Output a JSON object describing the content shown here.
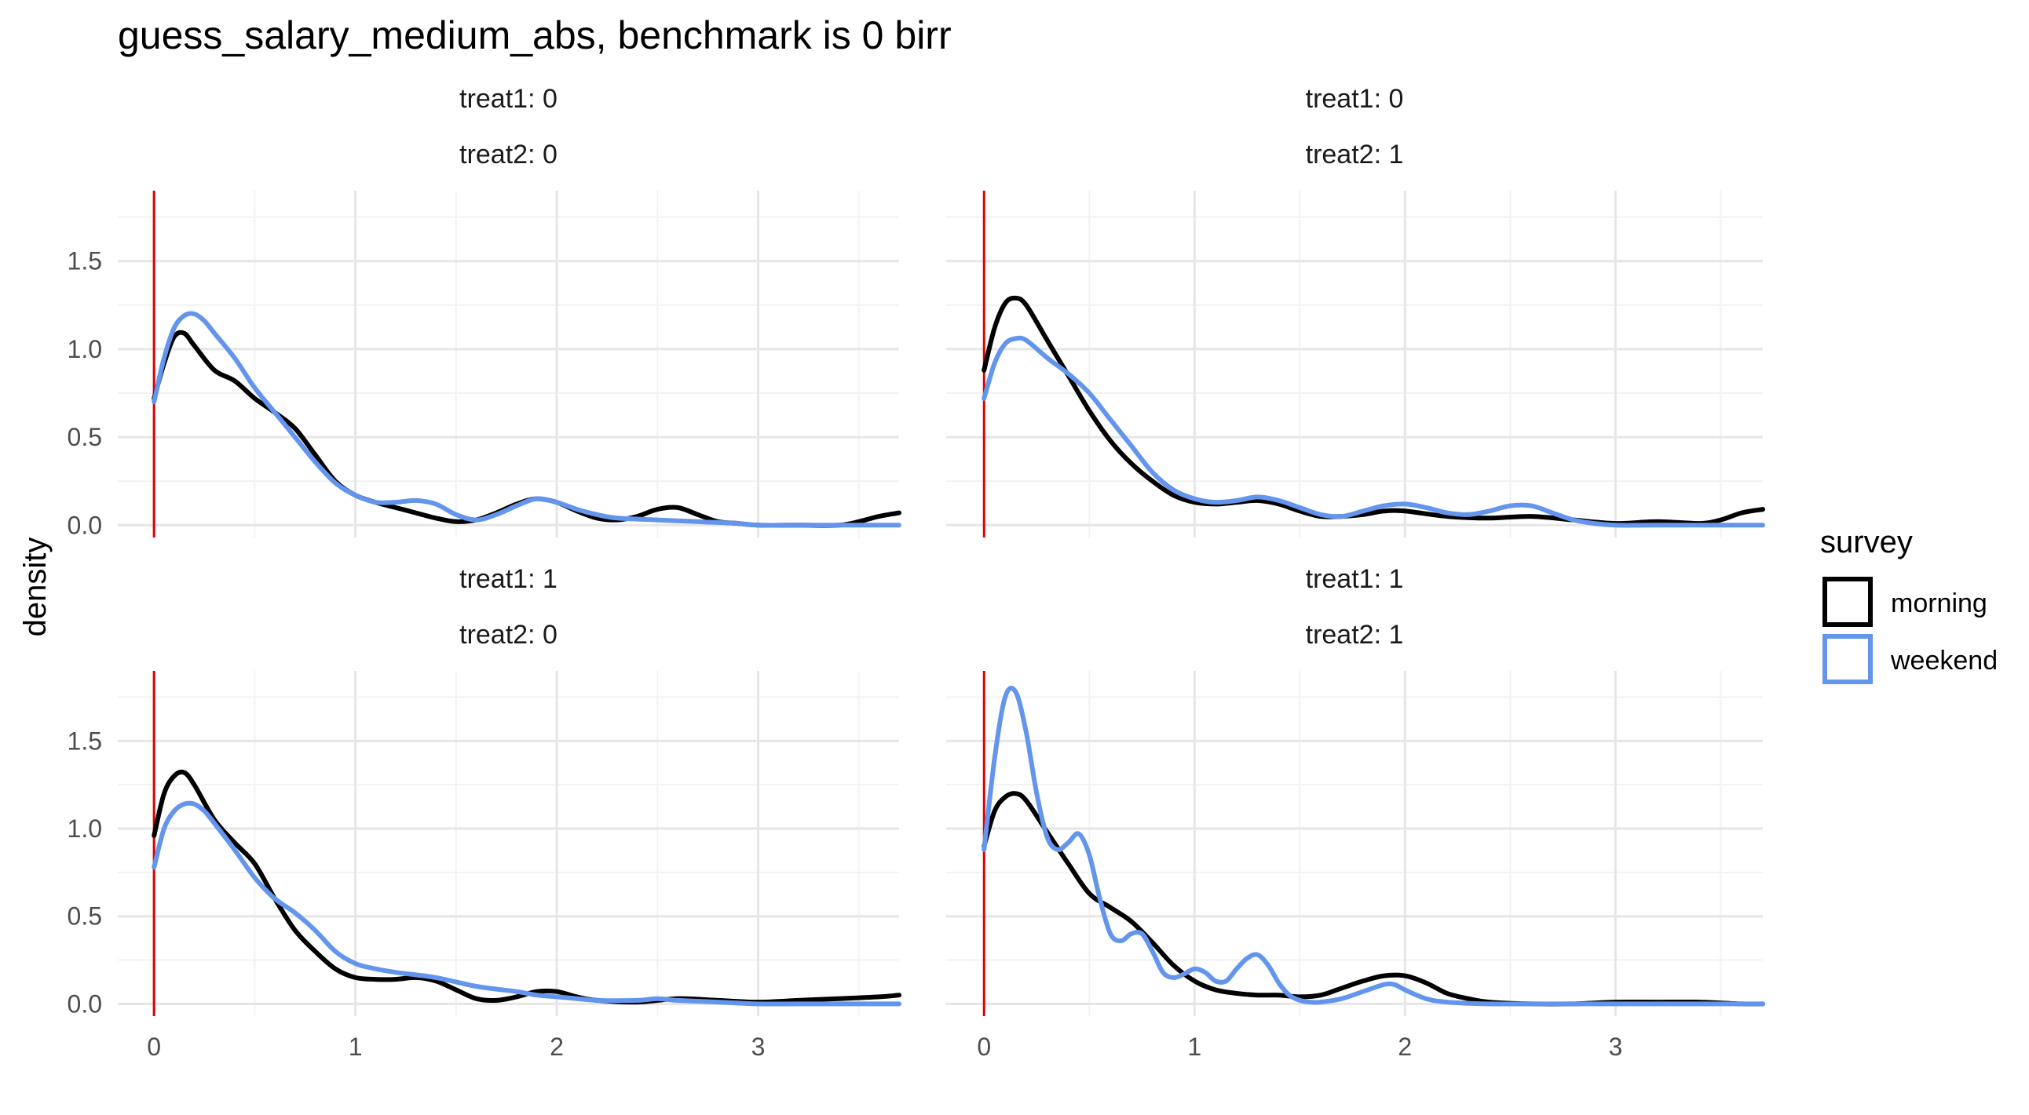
{
  "chart_data": {
    "type": "line",
    "title": "guess_salary_medium_abs, benchmark is 0 birr",
    "ylabel": "density",
    "xlabel": "",
    "x_ticks": [
      0,
      1,
      2,
      3
    ],
    "y_ticks": [
      0.0,
      0.5,
      1.0,
      1.5
    ],
    "y_tick_labels": [
      "0.0",
      "0.5",
      "1.0",
      "1.5"
    ],
    "xlim": [
      -0.18,
      3.7
    ],
    "ylim": [
      -0.07,
      1.9
    ],
    "benchmark_x": 0,
    "benchmark_color": "#e00000",
    "grid": true,
    "legend": {
      "title": "survey",
      "position": "right",
      "entries": [
        {
          "label": "morning",
          "color": "#000000"
        },
        {
          "label": "weekend",
          "color": "#6495ed"
        }
      ]
    },
    "panels": [
      {
        "strip1": "treat1: 0",
        "strip2": "treat2: 0",
        "series": [
          {
            "name": "morning",
            "color": "#000000",
            "x": [
              0,
              0.05,
              0.1,
              0.15,
              0.2,
              0.3,
              0.4,
              0.5,
              0.6,
              0.7,
              0.8,
              0.9,
              1.0,
              1.1,
              1.2,
              1.3,
              1.4,
              1.5,
              1.6,
              1.7,
              1.8,
              1.9,
              2.0,
              2.1,
              2.2,
              2.3,
              2.4,
              2.5,
              2.6,
              2.7,
              2.8,
              2.9,
              3.0,
              3.2,
              3.4,
              3.5,
              3.6,
              3.7
            ],
            "y": [
              0.72,
              0.92,
              1.07,
              1.09,
              1.02,
              0.88,
              0.82,
              0.72,
              0.64,
              0.55,
              0.4,
              0.25,
              0.17,
              0.13,
              0.1,
              0.07,
              0.04,
              0.02,
              0.03,
              0.07,
              0.12,
              0.15,
              0.13,
              0.08,
              0.04,
              0.03,
              0.05,
              0.09,
              0.1,
              0.06,
              0.02,
              0.01,
              0.0,
              0.0,
              0.0,
              0.02,
              0.05,
              0.07
            ]
          },
          {
            "name": "weekend",
            "color": "#6495ed",
            "x": [
              0,
              0.05,
              0.1,
              0.15,
              0.2,
              0.25,
              0.3,
              0.4,
              0.5,
              0.6,
              0.7,
              0.8,
              0.9,
              1.0,
              1.1,
              1.2,
              1.3,
              1.4,
              1.5,
              1.6,
              1.7,
              1.8,
              1.9,
              2.0,
              2.1,
              2.2,
              2.3,
              2.5,
              2.7,
              2.9,
              3.0,
              3.2,
              3.5,
              3.7
            ],
            "y": [
              0.7,
              0.95,
              1.12,
              1.19,
              1.2,
              1.16,
              1.09,
              0.95,
              0.78,
              0.64,
              0.5,
              0.36,
              0.24,
              0.17,
              0.13,
              0.13,
              0.14,
              0.12,
              0.06,
              0.03,
              0.06,
              0.11,
              0.15,
              0.13,
              0.09,
              0.06,
              0.04,
              0.03,
              0.02,
              0.01,
              0.0,
              0.0,
              0.0,
              0.0
            ]
          }
        ]
      },
      {
        "strip1": "treat1: 0",
        "strip2": "treat2: 1",
        "series": [
          {
            "name": "morning",
            "color": "#000000",
            "x": [
              0,
              0.05,
              0.1,
              0.15,
              0.2,
              0.3,
              0.4,
              0.5,
              0.6,
              0.7,
              0.8,
              0.9,
              1.0,
              1.1,
              1.2,
              1.3,
              1.4,
              1.5,
              1.6,
              1.7,
              1.8,
              1.9,
              2.0,
              2.2,
              2.4,
              2.6,
              2.8,
              3.0,
              3.2,
              3.4,
              3.5,
              3.6,
              3.7
            ],
            "y": [
              0.88,
              1.12,
              1.26,
              1.29,
              1.25,
              1.05,
              0.85,
              0.65,
              0.48,
              0.35,
              0.25,
              0.17,
              0.13,
              0.12,
              0.13,
              0.14,
              0.12,
              0.08,
              0.05,
              0.05,
              0.06,
              0.08,
              0.08,
              0.05,
              0.04,
              0.05,
              0.03,
              0.01,
              0.02,
              0.01,
              0.03,
              0.07,
              0.09
            ]
          },
          {
            "name": "weekend",
            "color": "#6495ed",
            "x": [
              0,
              0.05,
              0.1,
              0.15,
              0.2,
              0.3,
              0.4,
              0.5,
              0.6,
              0.7,
              0.8,
              0.9,
              1.0,
              1.1,
              1.2,
              1.3,
              1.4,
              1.5,
              1.6,
              1.7,
              1.8,
              1.9,
              2.0,
              2.1,
              2.2,
              2.3,
              2.4,
              2.5,
              2.6,
              2.7,
              2.8,
              2.9,
              3.0,
              3.2,
              3.5,
              3.7
            ],
            "y": [
              0.72,
              0.92,
              1.03,
              1.06,
              1.05,
              0.95,
              0.86,
              0.75,
              0.6,
              0.45,
              0.3,
              0.2,
              0.15,
              0.13,
              0.14,
              0.16,
              0.14,
              0.1,
              0.06,
              0.05,
              0.08,
              0.11,
              0.12,
              0.1,
              0.07,
              0.06,
              0.08,
              0.11,
              0.11,
              0.07,
              0.03,
              0.01,
              0.0,
              0.0,
              0.0,
              0.0
            ]
          }
        ]
      },
      {
        "strip1": "treat1: 1",
        "strip2": "treat2: 0",
        "series": [
          {
            "name": "morning",
            "color": "#000000",
            "x": [
              0,
              0.05,
              0.1,
              0.15,
              0.2,
              0.3,
              0.4,
              0.5,
              0.6,
              0.7,
              0.8,
              0.9,
              1.0,
              1.1,
              1.2,
              1.3,
              1.4,
              1.5,
              1.6,
              1.7,
              1.8,
              1.9,
              2.0,
              2.1,
              2.2,
              2.4,
              2.6,
              2.8,
              3.0,
              3.2,
              3.4,
              3.6,
              3.7
            ],
            "y": [
              0.96,
              1.2,
              1.3,
              1.32,
              1.25,
              1.05,
              0.92,
              0.8,
              0.6,
              0.42,
              0.3,
              0.2,
              0.15,
              0.14,
              0.14,
              0.15,
              0.13,
              0.08,
              0.03,
              0.02,
              0.04,
              0.07,
              0.07,
              0.04,
              0.02,
              0.01,
              0.03,
              0.02,
              0.01,
              0.02,
              0.03,
              0.04,
              0.05
            ]
          },
          {
            "name": "weekend",
            "color": "#6495ed",
            "x": [
              0,
              0.05,
              0.1,
              0.15,
              0.2,
              0.25,
              0.3,
              0.4,
              0.5,
              0.6,
              0.7,
              0.8,
              0.9,
              1.0,
              1.1,
              1.2,
              1.4,
              1.6,
              1.8,
              1.9,
              2.0,
              2.1,
              2.2,
              2.4,
              2.5,
              2.6,
              2.8,
              3.0,
              3.2,
              3.5,
              3.7
            ],
            "y": [
              0.78,
              1.0,
              1.1,
              1.14,
              1.14,
              1.1,
              1.03,
              0.88,
              0.72,
              0.6,
              0.52,
              0.42,
              0.3,
              0.23,
              0.2,
              0.18,
              0.15,
              0.1,
              0.07,
              0.05,
              0.04,
              0.03,
              0.02,
              0.02,
              0.03,
              0.02,
              0.01,
              0.0,
              0.0,
              0.0,
              0.0
            ]
          }
        ]
      },
      {
        "strip1": "treat1: 1",
        "strip2": "treat2: 1",
        "series": [
          {
            "name": "morning",
            "color": "#000000",
            "x": [
              0,
              0.05,
              0.1,
              0.15,
              0.2,
              0.3,
              0.4,
              0.5,
              0.6,
              0.7,
              0.8,
              0.9,
              1.0,
              1.1,
              1.2,
              1.3,
              1.4,
              1.5,
              1.6,
              1.7,
              1.8,
              1.9,
              2.0,
              2.1,
              2.2,
              2.3,
              2.4,
              2.6,
              2.8,
              3.0,
              3.2,
              3.4,
              3.6,
              3.7
            ],
            "y": [
              0.9,
              1.1,
              1.18,
              1.2,
              1.16,
              0.98,
              0.8,
              0.63,
              0.55,
              0.47,
              0.35,
              0.22,
              0.13,
              0.08,
              0.06,
              0.05,
              0.05,
              0.04,
              0.05,
              0.09,
              0.13,
              0.16,
              0.16,
              0.12,
              0.06,
              0.03,
              0.01,
              0.0,
              0.0,
              0.01,
              0.01,
              0.01,
              0.0,
              0.0
            ]
          },
          {
            "name": "weekend",
            "color": "#6495ed",
            "x": [
              0,
              0.05,
              0.1,
              0.15,
              0.2,
              0.25,
              0.3,
              0.35,
              0.4,
              0.45,
              0.5,
              0.55,
              0.6,
              0.65,
              0.7,
              0.75,
              0.8,
              0.85,
              0.9,
              0.95,
              1.0,
              1.05,
              1.1,
              1.15,
              1.2,
              1.25,
              1.3,
              1.35,
              1.4,
              1.45,
              1.5,
              1.55,
              1.6,
              1.7,
              1.8,
              1.9,
              1.95,
              2.0,
              2.1,
              2.2,
              2.4,
              2.6,
              3.0,
              3.4,
              3.7
            ],
            "y": [
              0.88,
              1.4,
              1.75,
              1.78,
              1.55,
              1.2,
              0.95,
              0.88,
              0.92,
              0.97,
              0.85,
              0.6,
              0.4,
              0.36,
              0.4,
              0.4,
              0.3,
              0.18,
              0.15,
              0.17,
              0.2,
              0.18,
              0.13,
              0.13,
              0.2,
              0.26,
              0.28,
              0.22,
              0.12,
              0.05,
              0.02,
              0.01,
              0.01,
              0.03,
              0.07,
              0.11,
              0.11,
              0.08,
              0.03,
              0.01,
              0.0,
              0.0,
              0.0,
              0.0,
              0.0
            ]
          }
        ]
      }
    ]
  }
}
